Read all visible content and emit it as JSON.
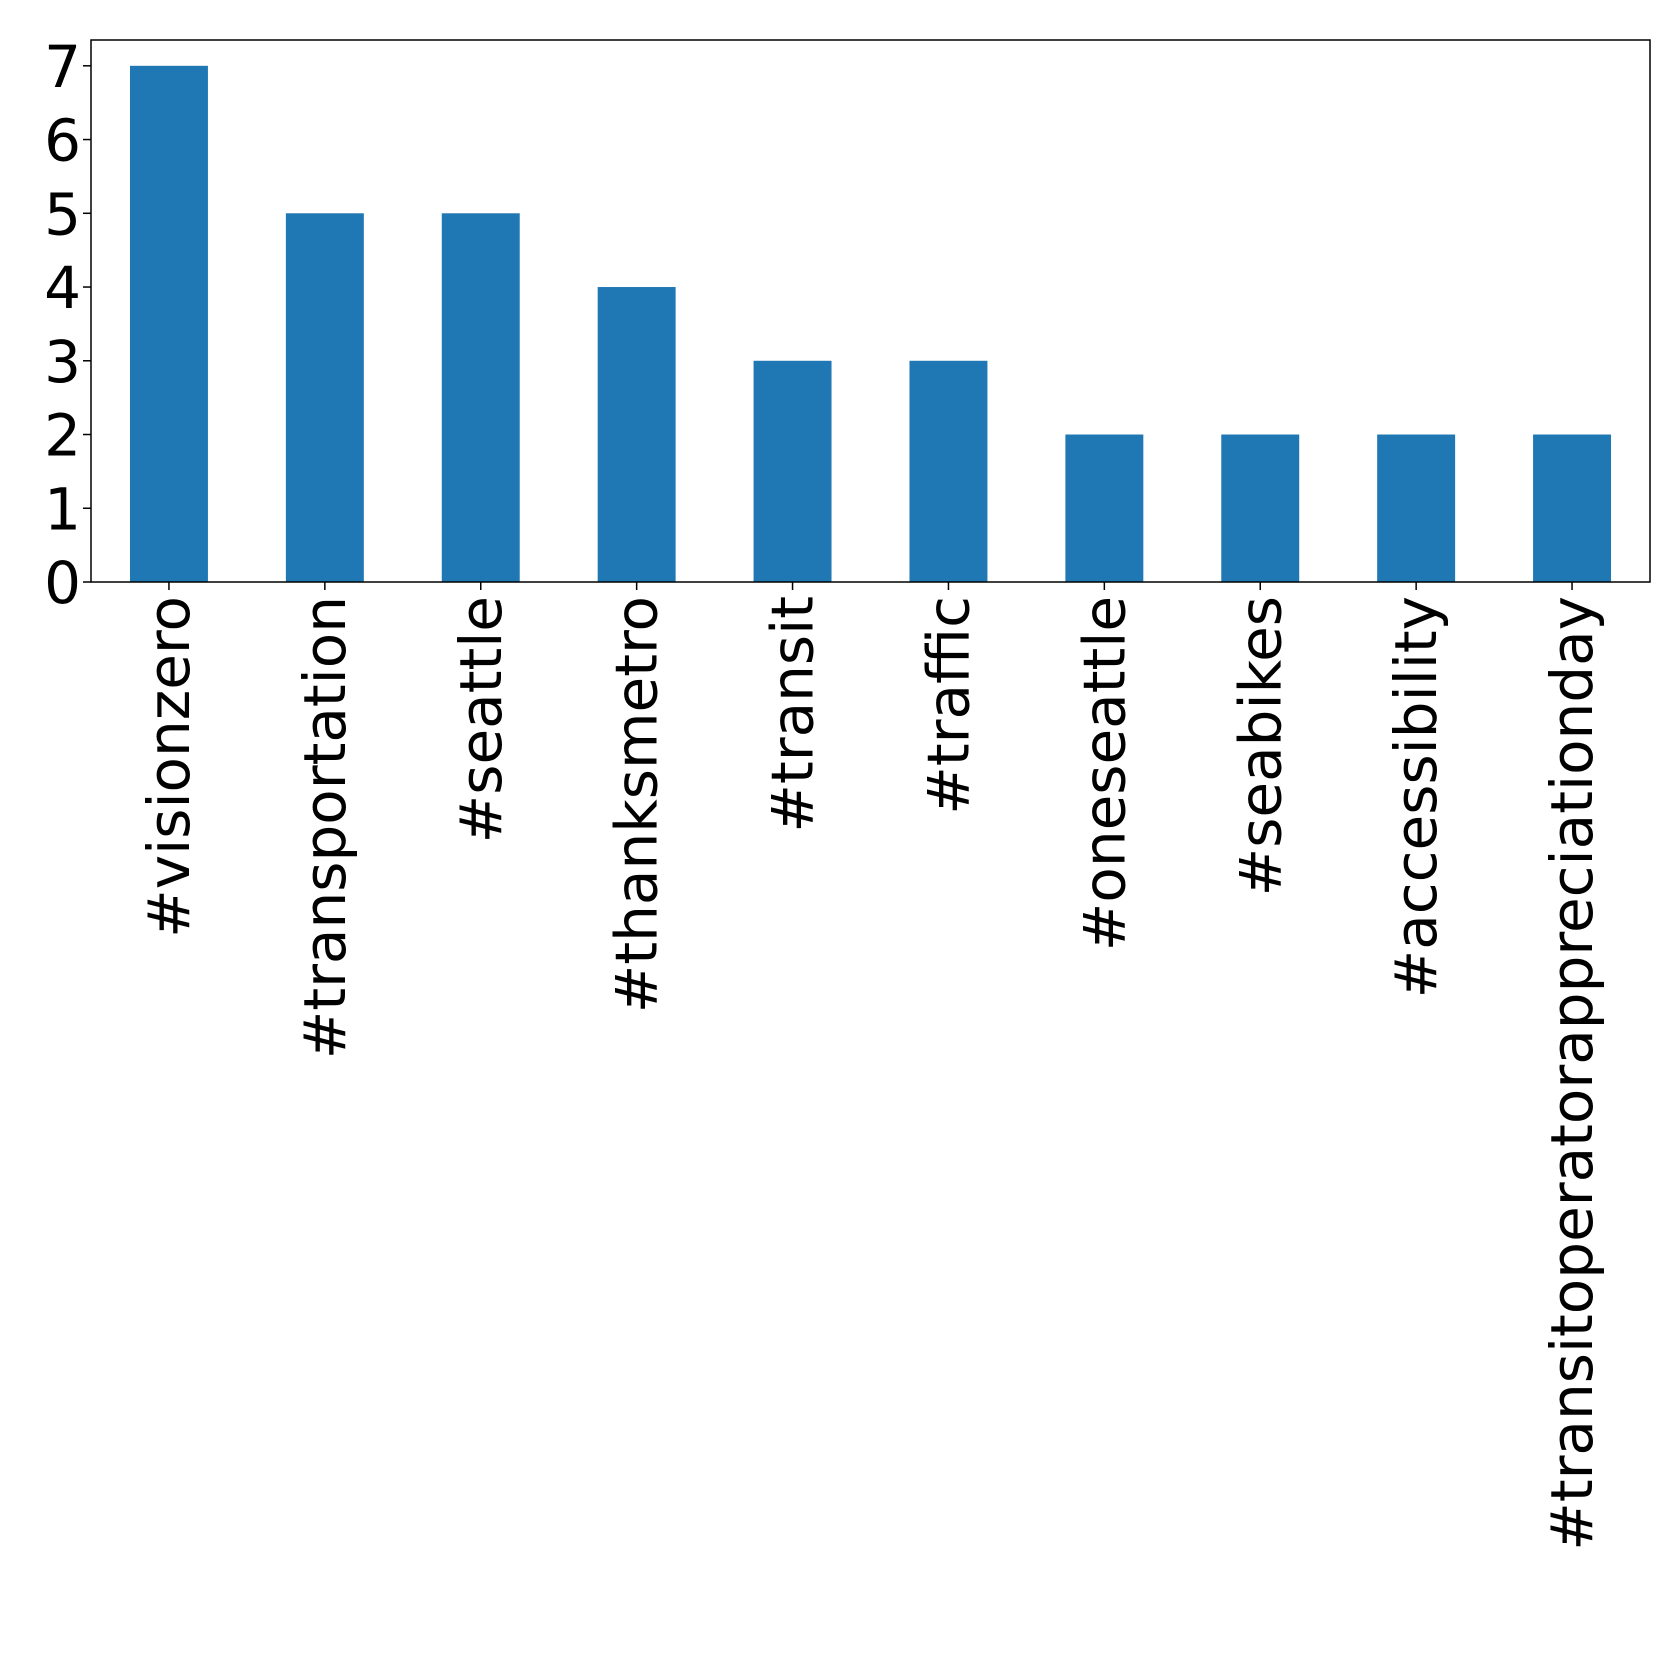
{
  "chart_data": {
    "type": "bar",
    "categories": [
      "#visionzero",
      "#transportation",
      "#seattle",
      "#thanksmetro",
      "#transit",
      "#traffic",
      "#oneseattle",
      "#seabikes",
      "#accessibility",
      "#transitoperatorappreciationday"
    ],
    "values": [
      7,
      5,
      5,
      4,
      3,
      3,
      2,
      2,
      2,
      2
    ],
    "ylim": [
      0,
      7.35
    ],
    "yticks": [
      0,
      1,
      2,
      3,
      4,
      5,
      6,
      7
    ],
    "grid": false,
    "legend": "none",
    "colors": {
      "bar": "#1f77b4"
    }
  }
}
